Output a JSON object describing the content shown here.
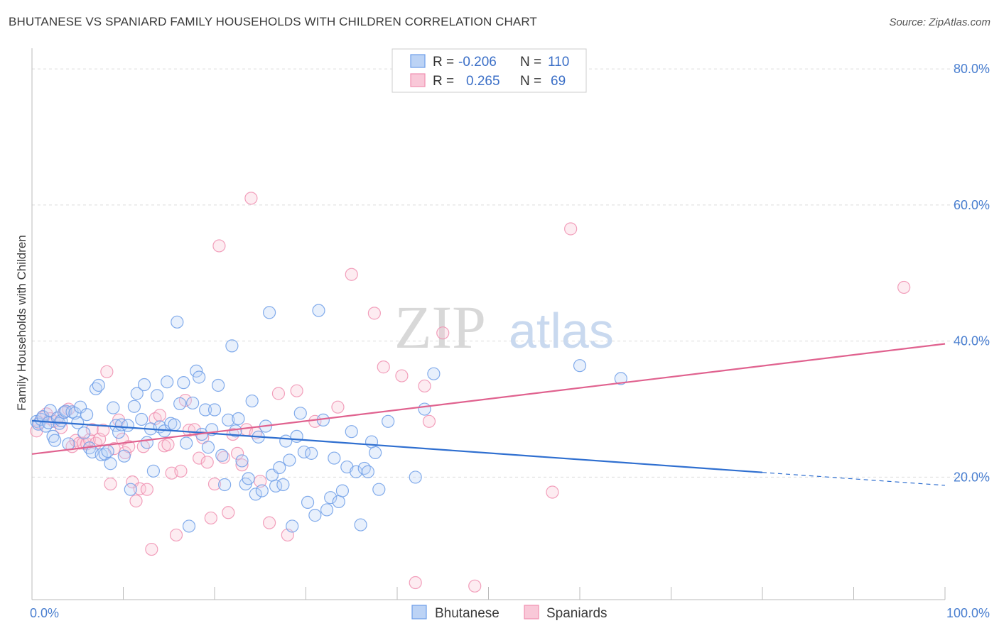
{
  "header": {
    "title": "BHUTANESE VS SPANIARD FAMILY HOUSEHOLDS WITH CHILDREN CORRELATION CHART",
    "source": "Source: ZipAtlas.com"
  },
  "watermark": {
    "zip": "ZIP",
    "atlas": "atlas"
  },
  "legend": {
    "rows": [
      {
        "r_label": "R =",
        "r_value": "-0.206",
        "n_label": "N =",
        "n_value": "110",
        "color": "#6d9ee8"
      },
      {
        "r_label": "R =",
        "r_value": "0.265",
        "n_label": "N =",
        "n_value": "69",
        "color": "#f08fb0"
      }
    ]
  },
  "bottom_legend": {
    "items": [
      {
        "label": "Bhutanese",
        "color": "#6d9ee8"
      },
      {
        "label": "Spaniards",
        "color": "#f08fb0"
      }
    ]
  },
  "chart_data": {
    "type": "scatter",
    "ylabel": "Family Households with Children",
    "xlim": [
      0,
      100
    ],
    "ylim": [
      2,
      82
    ],
    "x_tick_labels": [
      "0.0%",
      "100.0%"
    ],
    "y_ticks": [
      {
        "value": 20,
        "label": "20.0%"
      },
      {
        "value": 40,
        "label": "40.0%"
      },
      {
        "value": 60,
        "label": "60.0%"
      },
      {
        "value": 80,
        "label": "80.0%"
      }
    ],
    "grid": "horizontal dashed",
    "series": [
      {
        "name": "Bhutanese",
        "color": "#6d9ee8",
        "trend": {
          "x0": 0,
          "y0": 28.3,
          "x1": 80,
          "y1": 20.7,
          "dashed_to": 100,
          "dashed_y": 18.8
        },
        "points": [
          [
            0.5,
            28.2
          ],
          [
            0.7,
            27.8
          ],
          [
            1.0,
            28.5
          ],
          [
            1.2,
            28.9
          ],
          [
            1.5,
            27.5
          ],
          [
            1.8,
            28.0
          ],
          [
            2.0,
            29.8
          ],
          [
            2.3,
            26.0
          ],
          [
            2.5,
            25.4
          ],
          [
            2.8,
            28.7
          ],
          [
            3.0,
            27.9
          ],
          [
            3.2,
            28.3
          ],
          [
            3.5,
            29.5
          ],
          [
            3.7,
            29.7
          ],
          [
            4.0,
            24.9
          ],
          [
            4.4,
            29.6
          ],
          [
            4.7,
            29.4
          ],
          [
            5.0,
            28.0
          ],
          [
            5.3,
            30.3
          ],
          [
            5.7,
            26.5
          ],
          [
            6.0,
            29.2
          ],
          [
            6.3,
            24.3
          ],
          [
            6.6,
            23.7
          ],
          [
            7.0,
            33.0
          ],
          [
            7.3,
            33.5
          ],
          [
            7.6,
            23.3
          ],
          [
            8.0,
            23.4
          ],
          [
            8.3,
            23.8
          ],
          [
            8.6,
            22.0
          ],
          [
            8.9,
            30.2
          ],
          [
            9.2,
            27.6
          ],
          [
            9.5,
            26.6
          ],
          [
            9.8,
            27.7
          ],
          [
            10.1,
            23.1
          ],
          [
            10.5,
            27.6
          ],
          [
            10.8,
            18.2
          ],
          [
            11.2,
            30.4
          ],
          [
            11.5,
            32.3
          ],
          [
            12.0,
            28.5
          ],
          [
            12.3,
            33.6
          ],
          [
            12.6,
            25.1
          ],
          [
            13.0,
            27.1
          ],
          [
            13.3,
            20.9
          ],
          [
            13.7,
            32.0
          ],
          [
            14.0,
            27.4
          ],
          [
            14.5,
            26.8
          ],
          [
            14.8,
            34.0
          ],
          [
            15.2,
            27.9
          ],
          [
            15.6,
            27.7
          ],
          [
            15.9,
            42.8
          ],
          [
            16.2,
            30.8
          ],
          [
            16.6,
            33.9
          ],
          [
            16.9,
            25.0
          ],
          [
            17.2,
            12.8
          ],
          [
            17.6,
            30.9
          ],
          [
            18.0,
            35.6
          ],
          [
            18.3,
            34.7
          ],
          [
            18.6,
            26.3
          ],
          [
            19.0,
            29.9
          ],
          [
            19.3,
            24.4
          ],
          [
            19.7,
            27.0
          ],
          [
            20.0,
            29.9
          ],
          [
            20.4,
            33.5
          ],
          [
            20.8,
            23.2
          ],
          [
            21.1,
            18.9
          ],
          [
            21.5,
            28.4
          ],
          [
            21.9,
            39.3
          ],
          [
            22.3,
            26.8
          ],
          [
            22.6,
            28.6
          ],
          [
            23.0,
            22.4
          ],
          [
            23.4,
            19.0
          ],
          [
            23.7,
            19.8
          ],
          [
            24.1,
            31.2
          ],
          [
            24.5,
            17.5
          ],
          [
            24.8,
            25.9
          ],
          [
            25.2,
            18.0
          ],
          [
            25.6,
            27.5
          ],
          [
            26.0,
            44.2
          ],
          [
            26.3,
            20.3
          ],
          [
            26.7,
            18.7
          ],
          [
            27.1,
            21.4
          ],
          [
            27.5,
            18.9
          ],
          [
            27.8,
            25.3
          ],
          [
            28.2,
            22.5
          ],
          [
            28.5,
            12.8
          ],
          [
            29.0,
            26.0
          ],
          [
            29.4,
            29.4
          ],
          [
            29.8,
            23.7
          ],
          [
            30.2,
            16.3
          ],
          [
            30.6,
            23.5
          ],
          [
            31.0,
            14.4
          ],
          [
            31.4,
            44.5
          ],
          [
            31.9,
            28.4
          ],
          [
            32.3,
            15.2
          ],
          [
            32.7,
            17.0
          ],
          [
            33.1,
            22.8
          ],
          [
            33.6,
            16.4
          ],
          [
            34.0,
            18.0
          ],
          [
            34.5,
            21.5
          ],
          [
            35.0,
            26.7
          ],
          [
            35.5,
            20.8
          ],
          [
            36.0,
            13.0
          ],
          [
            36.4,
            21.3
          ],
          [
            36.8,
            20.8
          ],
          [
            37.2,
            25.2
          ],
          [
            37.6,
            23.6
          ],
          [
            38.0,
            18.2
          ],
          [
            39.0,
            28.2
          ],
          [
            42.0,
            20.0
          ],
          [
            43.0,
            30.0
          ],
          [
            44.0,
            35.2
          ],
          [
            60.0,
            36.4
          ],
          [
            64.5,
            34.5
          ]
        ]
      },
      {
        "name": "Spaniards",
        "color": "#f08fb0",
        "trend": {
          "x0": 0,
          "y0": 23.4,
          "x1": 100,
          "y1": 39.6
        },
        "points": [
          [
            0.5,
            26.8
          ],
          [
            0.8,
            28.0
          ],
          [
            1.2,
            28.8
          ],
          [
            1.6,
            29.3
          ],
          [
            2.0,
            28.6
          ],
          [
            2.4,
            28.2
          ],
          [
            2.8,
            28.7
          ],
          [
            3.2,
            27.3
          ],
          [
            3.6,
            29.6
          ],
          [
            4.0,
            30.0
          ],
          [
            4.4,
            24.5
          ],
          [
            4.8,
            25.4
          ],
          [
            5.2,
            25.0
          ],
          [
            5.6,
            25.0
          ],
          [
            6.0,
            24.9
          ],
          [
            6.3,
            25.5
          ],
          [
            6.6,
            27.0
          ],
          [
            7.0,
            25.0
          ],
          [
            7.4,
            25.6
          ],
          [
            7.8,
            26.9
          ],
          [
            8.2,
            35.5
          ],
          [
            8.6,
            19.0
          ],
          [
            9.0,
            24.2
          ],
          [
            9.5,
            28.4
          ],
          [
            9.9,
            25.6
          ],
          [
            10.2,
            23.6
          ],
          [
            10.6,
            24.5
          ],
          [
            11.0,
            19.3
          ],
          [
            11.4,
            16.5
          ],
          [
            11.8,
            18.3
          ],
          [
            12.2,
            24.5
          ],
          [
            12.6,
            18.2
          ],
          [
            13.1,
            9.4
          ],
          [
            13.5,
            28.6
          ],
          [
            14.0,
            29.1
          ],
          [
            14.5,
            24.6
          ],
          [
            14.9,
            24.8
          ],
          [
            15.3,
            20.6
          ],
          [
            15.8,
            11.5
          ],
          [
            16.3,
            20.9
          ],
          [
            16.8,
            31.3
          ],
          [
            17.2,
            26.9
          ],
          [
            17.8,
            27.0
          ],
          [
            18.3,
            22.8
          ],
          [
            18.7,
            25.8
          ],
          [
            19.2,
            22.2
          ],
          [
            19.6,
            14.0
          ],
          [
            20.0,
            19.0
          ],
          [
            20.5,
            54.0
          ],
          [
            21.0,
            22.9
          ],
          [
            21.5,
            14.8
          ],
          [
            22.0,
            26.3
          ],
          [
            22.5,
            23.5
          ],
          [
            23.0,
            21.8
          ],
          [
            23.5,
            27.0
          ],
          [
            24.0,
            61.0
          ],
          [
            24.5,
            26.5
          ],
          [
            25.0,
            19.4
          ],
          [
            26.0,
            13.3
          ],
          [
            27.0,
            32.3
          ],
          [
            28.0,
            11.5
          ],
          [
            29.0,
            32.7
          ],
          [
            31.0,
            28.2
          ],
          [
            33.5,
            30.3
          ],
          [
            35.0,
            49.8
          ],
          [
            37.5,
            44.1
          ],
          [
            38.5,
            36.2
          ],
          [
            40.5,
            34.9
          ],
          [
            42.0,
            4.5
          ],
          [
            43.0,
            33.4
          ],
          [
            43.5,
            28.2
          ],
          [
            45.0,
            41.2
          ],
          [
            48.5,
            4.0
          ],
          [
            57.0,
            17.8
          ],
          [
            59.0,
            56.5
          ],
          [
            95.5,
            47.9
          ]
        ]
      }
    ]
  }
}
